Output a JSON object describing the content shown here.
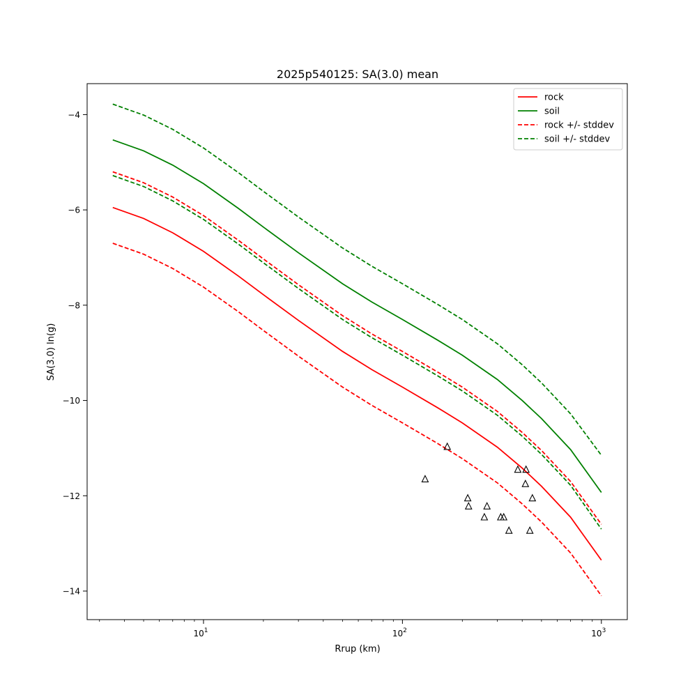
{
  "chart_data": {
    "type": "line",
    "title": "2025p540125: SA(3.0) mean",
    "xlabel": "Rrup (km)",
    "ylabel": "SA(3.0) ln(g)",
    "xscale": "log",
    "xlim": [
      2.6,
      1350
    ],
    "ylim": [
      -14.6,
      -3.35
    ],
    "x_ticks": [
      {
        "value": 10,
        "base": "10",
        "exp": "1"
      },
      {
        "value": 100,
        "base": "10",
        "exp": "2"
      },
      {
        "value": 1000,
        "base": "10",
        "exp": "3"
      }
    ],
    "y_ticks": [
      {
        "value": -4,
        "label": "−4"
      },
      {
        "value": -6,
        "label": "−6"
      },
      {
        "value": -8,
        "label": "−8"
      },
      {
        "value": -10,
        "label": "−10"
      },
      {
        "value": -12,
        "label": "−12"
      },
      {
        "value": -14,
        "label": "−14"
      }
    ],
    "grid": false,
    "legend_position": "top-right",
    "x": [
      3.5,
      5,
      7,
      10,
      15,
      20,
      30,
      50,
      70,
      100,
      150,
      200,
      300,
      400,
      500,
      700,
      1000
    ],
    "series": [
      {
        "name": "rock",
        "color": "#ff0000",
        "dash": false,
        "in_legend": true,
        "values": [
          -5.95,
          -6.18,
          -6.48,
          -6.87,
          -7.39,
          -7.78,
          -8.32,
          -8.97,
          -9.35,
          -9.72,
          -10.15,
          -10.47,
          -10.98,
          -11.42,
          -11.8,
          -12.45,
          -13.35
        ]
      },
      {
        "name": "soil",
        "color": "#008000",
        "dash": false,
        "in_legend": true,
        "values": [
          -4.53,
          -4.76,
          -5.06,
          -5.45,
          -5.97,
          -6.36,
          -6.9,
          -7.55,
          -7.93,
          -8.3,
          -8.73,
          -9.05,
          -9.56,
          -10.0,
          -10.38,
          -11.03,
          -11.93
        ]
      },
      {
        "name": "rock +/- stddev",
        "color": "#ff0000",
        "dash": true,
        "in_legend": true,
        "values": [
          -5.2,
          -5.43,
          -5.73,
          -6.12,
          -6.64,
          -7.03,
          -7.57,
          -8.22,
          -8.6,
          -8.97,
          -9.4,
          -9.72,
          -10.23,
          -10.67,
          -11.05,
          -11.7,
          -12.6
        ]
      },
      {
        "name": "",
        "color": "#ff0000",
        "dash": true,
        "in_legend": false,
        "values": [
          -6.7,
          -6.93,
          -7.23,
          -7.62,
          -8.14,
          -8.53,
          -9.07,
          -9.72,
          -10.1,
          -10.47,
          -10.9,
          -11.22,
          -11.73,
          -12.17,
          -12.55,
          -13.2,
          -14.1
        ]
      },
      {
        "name": "soil +/- stddev",
        "color": "#008000",
        "dash": true,
        "in_legend": true,
        "values": [
          -3.78,
          -4.01,
          -4.31,
          -4.7,
          -5.22,
          -5.61,
          -6.15,
          -6.8,
          -7.18,
          -7.55,
          -7.98,
          -8.3,
          -8.81,
          -9.25,
          -9.63,
          -10.28,
          -11.15
        ]
      },
      {
        "name": "",
        "color": "#008000",
        "dash": true,
        "in_legend": false,
        "values": [
          -5.28,
          -5.51,
          -5.81,
          -6.2,
          -6.72,
          -7.11,
          -7.65,
          -8.3,
          -8.68,
          -9.05,
          -9.48,
          -9.8,
          -10.31,
          -10.75,
          -11.13,
          -11.78,
          -12.7
        ]
      }
    ],
    "observations": {
      "marker": "triangle",
      "color": "#000000",
      "points": [
        {
          "x": 130,
          "y": -11.65
        },
        {
          "x": 168,
          "y": -10.97
        },
        {
          "x": 213,
          "y": -12.05
        },
        {
          "x": 215,
          "y": -12.22
        },
        {
          "x": 258,
          "y": -12.45
        },
        {
          "x": 266,
          "y": -12.22
        },
        {
          "x": 312,
          "y": -12.45
        },
        {
          "x": 323,
          "y": -12.45
        },
        {
          "x": 343,
          "y": -12.73
        },
        {
          "x": 380,
          "y": -11.45
        },
        {
          "x": 415,
          "y": -11.75
        },
        {
          "x": 418,
          "y": -11.45
        },
        {
          "x": 437,
          "y": -12.73
        },
        {
          "x": 450,
          "y": -12.05
        }
      ]
    }
  }
}
